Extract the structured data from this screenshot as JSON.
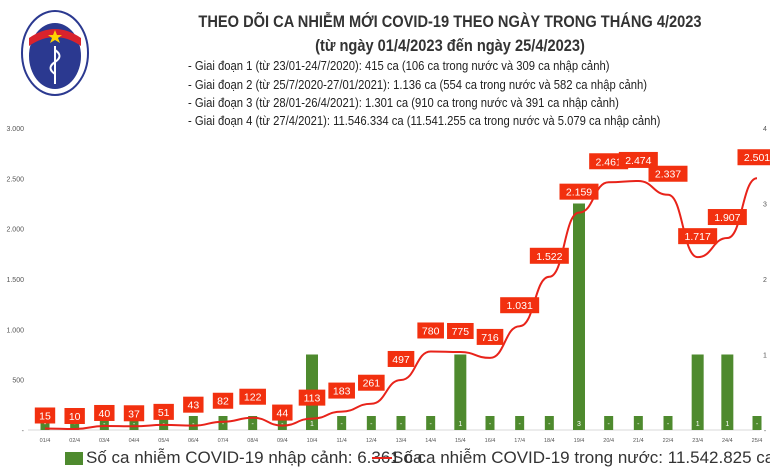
{
  "header": {
    "logo_text": "BỘ Y TẾ · MINISTRY OF HEALTH",
    "title": "THEO DÕI CA NHIỄM MỚI COVID-19 THEO NGÀY TRONG THÁNG 4/2023",
    "subtitle": "(từ ngày 01/4/2023 đến ngày 25/4/2023)",
    "notes": [
      "- Giai đoạn 1 (từ 23/01-24/7/2020): 415 ca (106 ca trong nước và 309 ca nhập cảnh)",
      "- Giai đoạn 2 (từ 25/7/2020-27/01/2021): 1.136 ca (554 ca trong nước và 582 ca nhập cảnh)",
      "- Giai đoạn 3 (từ 28/01-26/4/2021): 1.301 ca (910 ca trong nước và 391 ca nhập cảnh)",
      "- Giai đoạn 4 (từ 27/4/2021): 11.546.334 ca (11.541.255 ca trong nước và 5.079 ca nhập cảnh)"
    ]
  },
  "chart_data": {
    "type": "bar+line",
    "categories": [
      "01/4",
      "02/4",
      "03/4",
      "04/4",
      "05/4",
      "06/4",
      "07/4",
      "08/4",
      "09/4",
      "10/4",
      "11/4",
      "12/4",
      "13/4",
      "14/4",
      "15/4",
      "16/4",
      "17/4",
      "18/4",
      "19/4",
      "20/4",
      "21/4",
      "22/4",
      "23/4",
      "24/4",
      "25/4"
    ],
    "series": [
      {
        "name": "Số ca nhiễm COVID-19 nhập cảnh: 6.361 ca",
        "type": "bar",
        "axis": "right",
        "color": "#4e8a2e",
        "values": [
          0,
          0,
          0,
          0,
          0,
          0,
          0,
          0,
          0,
          1,
          0,
          0,
          0,
          0,
          1,
          0,
          0,
          0,
          3,
          0,
          0,
          0,
          1,
          1,
          0
        ],
        "labels": [
          "-",
          "-",
          "-",
          "-",
          "-",
          "-",
          "-",
          "-",
          "-",
          "1",
          "-",
          "-",
          "-",
          "-",
          "1",
          "-",
          "-",
          "-",
          "3",
          "-",
          "-",
          "-",
          "1",
          "1",
          "-"
        ]
      },
      {
        "name": "Số ca nhiễm COVID-19 trong nước: 11.542.825 ca",
        "type": "line",
        "axis": "left",
        "color": "#e8231a",
        "values": [
          15,
          10,
          40,
          37,
          51,
          43,
          82,
          122,
          44,
          113,
          183,
          261,
          497,
          780,
          775,
          716,
          1031,
          1522,
          2159,
          2461,
          2474,
          2337,
          1717,
          1907,
          2501
        ],
        "labels": [
          "15",
          "10",
          "40",
          "37",
          "51",
          "43",
          "82",
          "122",
          "44",
          "113",
          "183",
          "261",
          "497",
          "780",
          "775",
          "716",
          "1.031",
          "1.522",
          "2.159",
          "2.461",
          "2.474",
          "2.337",
          "1.717",
          "1.907",
          "2.501"
        ]
      }
    ],
    "y_left": {
      "range": [
        0,
        3000
      ],
      "ticks": [
        "-",
        "500",
        "1.000",
        "1.500",
        "2.000",
        "2.500",
        "3.000"
      ]
    },
    "y_right": {
      "range": [
        0,
        4
      ],
      "ticks": [
        "-",
        "1",
        "2",
        "3",
        "4"
      ]
    },
    "grid": false,
    "legend_position": "bottom"
  }
}
